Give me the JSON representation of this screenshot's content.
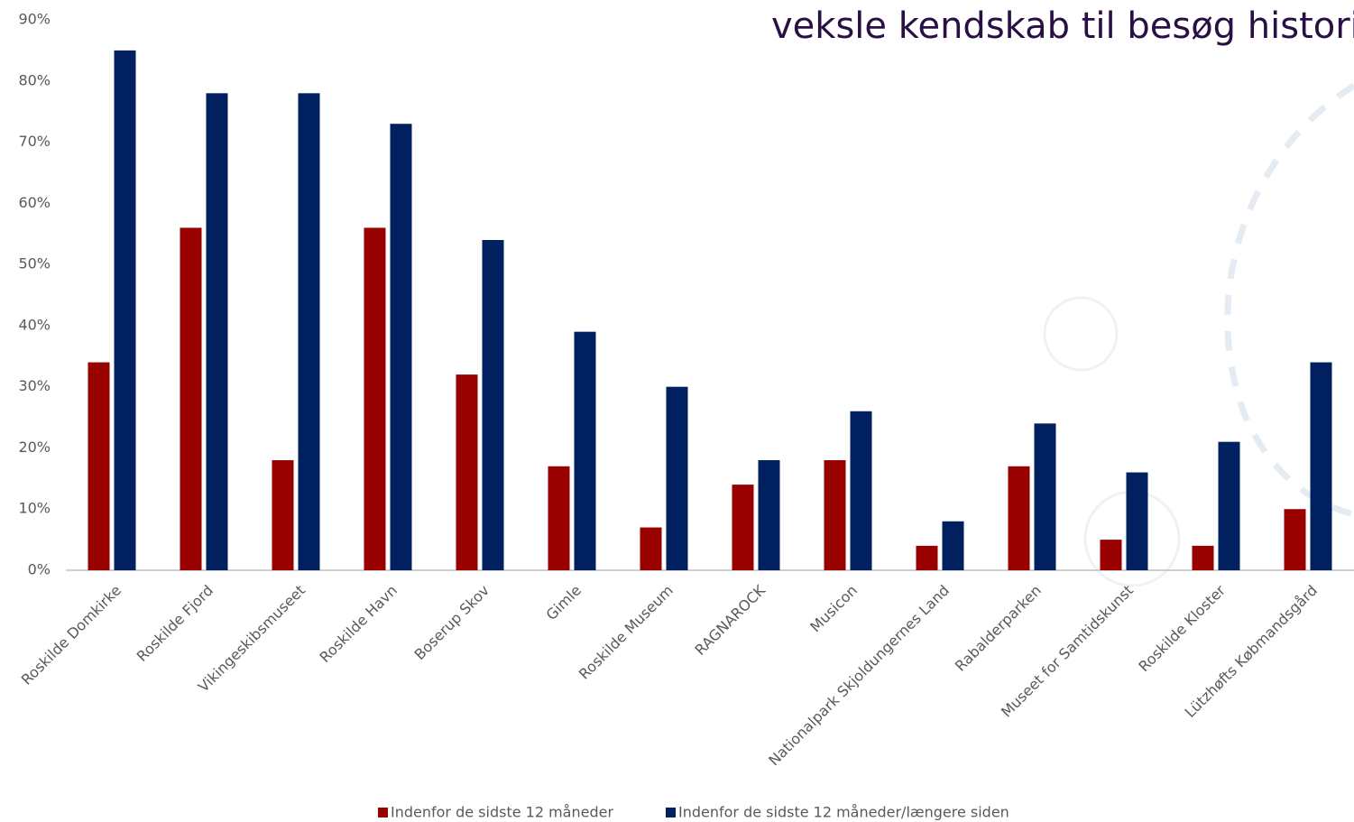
{
  "chart_data": {
    "type": "bar",
    "title": "veksle kendskab til besøg historis",
    "categories": [
      "Roskilde Domkirke",
      "Roskilde Fjord",
      "Vikingeskibsmuseet",
      "Roskilde Havn",
      "Boserup Skov",
      "Gimle",
      "Roskilde Museum",
      "RAGNAROCK",
      "Musicon",
      "Nationalpark Skjoldungernes Land",
      "Rabalderparken",
      "Museet for Samtidskunst",
      "Roskilde Kloster",
      "Lützhøfts Købmandsgård"
    ],
    "series": [
      {
        "name": "Indenfor de sidste 12 måneder",
        "color": "#990000",
        "values": [
          34,
          56,
          18,
          56,
          32,
          17,
          7,
          14,
          18,
          4,
          17,
          5,
          4,
          10
        ]
      },
      {
        "name": "Indenfor de sidste 12 måneder/længere siden",
        "color": "#002060",
        "values": [
          85,
          78,
          78,
          73,
          54,
          39,
          30,
          18,
          26,
          8,
          24,
          16,
          21,
          34
        ]
      }
    ],
    "ylim": [
      0,
      90
    ],
    "yticks": [
      {
        "value": 0,
        "label": "0%"
      },
      {
        "value": 10,
        "label": "10%"
      },
      {
        "value": 20,
        "label": "20%"
      },
      {
        "value": 30,
        "label": "30%"
      },
      {
        "value": 40,
        "label": "40%"
      },
      {
        "value": 50,
        "label": "50%"
      },
      {
        "value": 60,
        "label": "60%"
      },
      {
        "value": 70,
        "label": "70%"
      },
      {
        "value": 80,
        "label": "80%"
      },
      {
        "value": 90,
        "label": "90%"
      }
    ],
    "legend": "bottom"
  }
}
